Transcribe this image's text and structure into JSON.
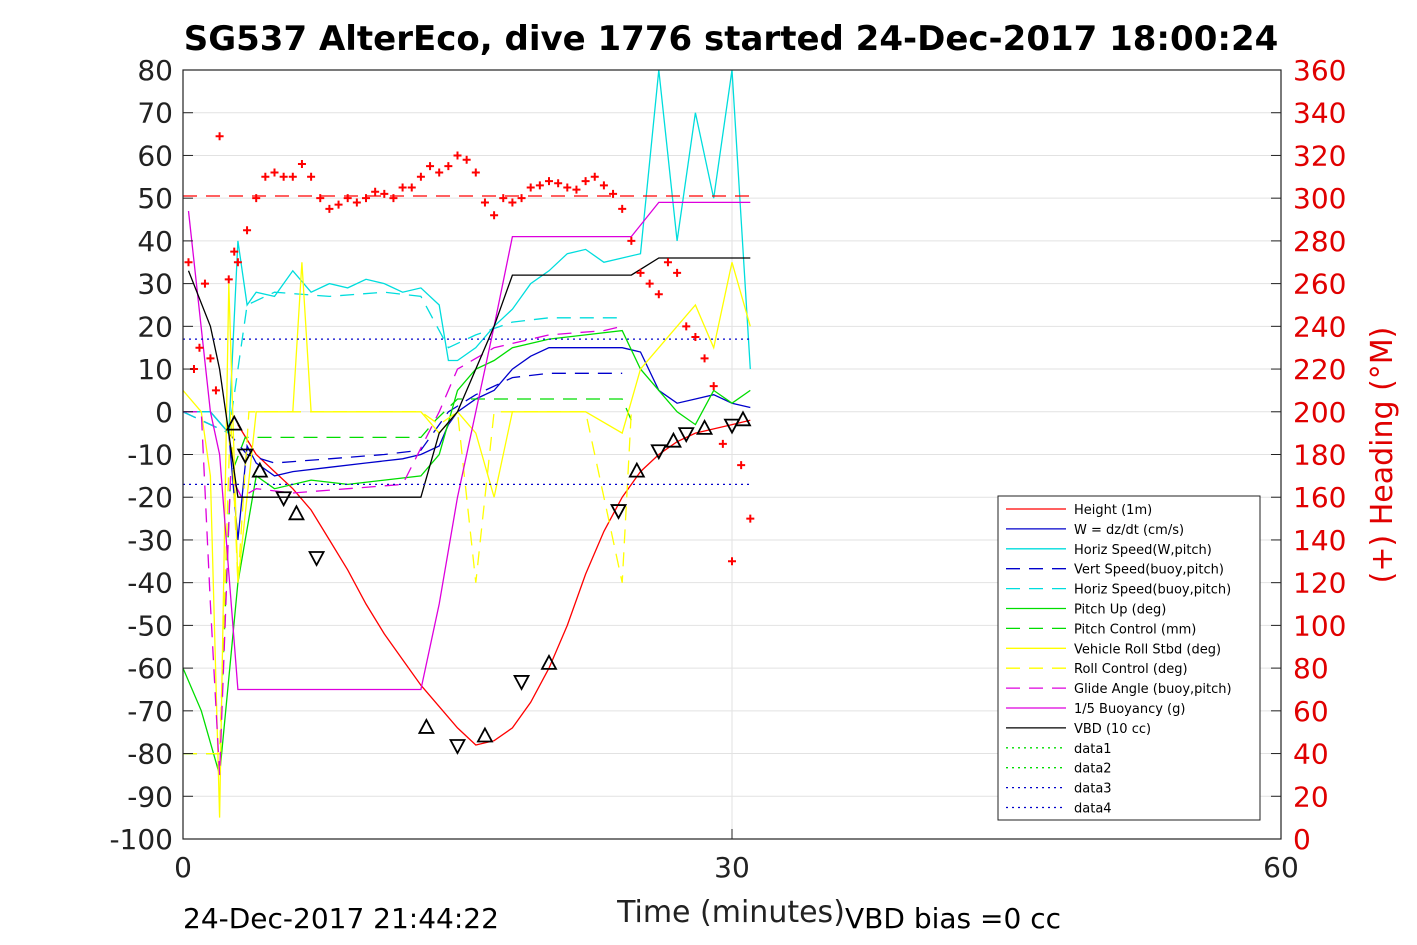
{
  "chart_data": {
    "type": "line",
    "title": "SG537 AlterEco, dive 1776 started 24-Dec-2017 18:00:24",
    "xlabel": "Time (minutes)",
    "ylabel": "",
    "y2label": "(+) Heading (°M)",
    "xlim": [
      0,
      60
    ],
    "ylim": [
      -100,
      80
    ],
    "y2lim": [
      0,
      360
    ],
    "x_ticks": [
      0,
      30,
      60
    ],
    "y_ticks": [
      80,
      70,
      60,
      50,
      40,
      30,
      20,
      10,
      0,
      -10,
      -20,
      -30,
      -40,
      -50,
      -60,
      -70,
      -80,
      -90,
      -100
    ],
    "y2_ticks": [
      360,
      340,
      320,
      300,
      280,
      260,
      240,
      220,
      200,
      180,
      160,
      140,
      120,
      100,
      80,
      60,
      40,
      20,
      0
    ],
    "grid": true,
    "legend_position": "bottom-right",
    "footer_left": "24-Dec-2017 21:44:22",
    "footer_right": "VBD bias =0 cc",
    "colors": {
      "height": "#ff0000",
      "w": "#0000cc",
      "horiz_w": "#00dddd",
      "vert_buoy": "#0000cc",
      "horiz_buoy": "#00dddd",
      "pitch_up": "#00dd00",
      "pitch_control": "#00dd00",
      "roll": "#ffff00",
      "roll_control": "#ffff00",
      "glide_angle": "#dd00dd",
      "buoyancy": "#dd00dd",
      "vbd": "#000000",
      "heading": "#ff0000"
    },
    "series": [
      {
        "name": "Height (1m)",
        "style": "solid",
        "color": "#ff0000",
        "x": [
          3.0,
          4.0,
          5.0,
          6.0,
          7.0,
          8.0,
          9.0,
          10.0,
          11.0,
          12.0,
          13.0,
          14.0,
          15.0,
          16.0,
          17.0,
          18.0,
          19.0,
          20.0,
          21.0,
          22.0,
          23.0,
          24.0,
          25.0,
          26.0,
          27.0,
          28.0,
          29.0,
          30.0,
          31.0
        ],
        "y": [
          -3,
          -10,
          -14,
          -18,
          -23,
          -30,
          -37,
          -45,
          -52,
          -58,
          -64,
          -69,
          -74,
          -78,
          -77,
          -74,
          -68,
          -60,
          -50,
          -38,
          -28,
          -20,
          -14,
          -10,
          -7,
          -5,
          -4,
          -3,
          -2
        ]
      },
      {
        "name": "W = dz/dt (cm/s)",
        "style": "solid",
        "color": "#0000cc",
        "x": [
          0,
          1.5,
          2.5,
          3.0,
          3.5,
          4.0,
          5.0,
          6.0,
          8.0,
          10.0,
          12.0,
          13.0,
          14.0,
          14.5,
          15.0,
          16.0,
          17.0,
          18.0,
          19.0,
          20.0,
          22.0,
          24.0,
          25.0,
          26.0,
          27.0,
          28.0,
          29.0,
          30.0,
          31.0
        ],
        "y": [
          0,
          0,
          -5,
          -30,
          -8,
          -12,
          -15,
          -14,
          -13,
          -12,
          -11,
          -10,
          -8,
          -3,
          0,
          3,
          5,
          10,
          13,
          15,
          15,
          15,
          14,
          5,
          2,
          3,
          4,
          2,
          1
        ]
      },
      {
        "name": "Horiz Speed(W,pitch)",
        "style": "solid",
        "color": "#00dddd",
        "x": [
          0,
          1.5,
          2.5,
          3.0,
          3.5,
          4.0,
          5.0,
          6.0,
          7.0,
          8.0,
          9.0,
          10.0,
          11.0,
          12.0,
          13.0,
          14.0,
          14.5,
          15.0,
          16.0,
          17.0,
          18.0,
          19.0,
          20.0,
          21.0,
          22.0,
          23.0,
          24.0,
          25.0,
          26.0,
          27.0,
          28.0,
          29.0,
          30.0,
          31.0
        ],
        "y": [
          0,
          0,
          -5,
          40,
          25,
          28,
          27,
          33,
          28,
          30,
          29,
          31,
          30,
          28,
          29,
          25,
          12,
          12,
          15,
          20,
          24,
          30,
          33,
          37,
          38,
          35,
          36,
          37,
          80,
          40,
          70,
          50,
          80,
          10
        ]
      },
      {
        "name": "Vert Speed(buoy,pitch)",
        "style": "dashed",
        "color": "#0000cc",
        "x": [
          0,
          2.5,
          3.5,
          5.0,
          8.0,
          11.0,
          13.0,
          14.5,
          16.0,
          18.0,
          20.0,
          22.0,
          24.0
        ],
        "y": [
          0,
          -5,
          -10,
          -12,
          -11,
          -10,
          -9,
          0,
          4,
          8,
          9,
          9,
          9
        ]
      },
      {
        "name": "Horiz Speed(buoy,pitch)",
        "style": "dashed",
        "color": "#00dddd",
        "x": [
          0,
          2.5,
          3.5,
          5.0,
          8.0,
          11.0,
          13.0,
          14.5,
          16.0,
          18.0,
          20.0,
          22.0,
          24.0
        ],
        "y": [
          0,
          -5,
          25,
          28,
          27,
          28,
          27,
          15,
          18,
          21,
          22,
          22,
          22
        ]
      },
      {
        "name": "Pitch Up (deg)",
        "style": "solid",
        "color": "#00dd00",
        "x": [
          0,
          1.0,
          2.0,
          3.0,
          4.0,
          5.0,
          7.0,
          9.0,
          11.0,
          13.0,
          14.0,
          15.0,
          16.0,
          17.0,
          18.0,
          20.0,
          22.0,
          24.0,
          25.0,
          26.0,
          27.0,
          28.0,
          29.0,
          30.0,
          31.0
        ],
        "y": [
          -60,
          -70,
          -85,
          -40,
          -15,
          -18,
          -16,
          -17,
          -16,
          -15,
          -10,
          5,
          10,
          12,
          15,
          17,
          18,
          19,
          10,
          5,
          0,
          -3,
          5,
          2,
          5
        ]
      },
      {
        "name": "Pitch Control (mm)",
        "style": "dashed",
        "color": "#00dd00",
        "x": [
          0,
          2.0,
          2.6,
          3.4,
          4.5,
          8.0,
          13.0,
          13.8,
          15.0,
          18.0,
          24.0,
          24.5
        ],
        "y": [
          -80,
          -80,
          -15,
          -6,
          -6,
          -6,
          -6,
          -2,
          3,
          3,
          3,
          -2
        ]
      },
      {
        "name": "Vehicle Roll Stbd (deg)",
        "style": "solid",
        "color": "#ffff00",
        "x": [
          0,
          1.0,
          1.5,
          2.0,
          2.5,
          3.0,
          4.0,
          5.0,
          6.0,
          6.5,
          7.0,
          8.0,
          10.0,
          12.0,
          13.0,
          14.0,
          15.0,
          16.0,
          17.0,
          18.0,
          20.0,
          22.0,
          24.0,
          25.0,
          26.0,
          27.0,
          28.0,
          29.0,
          30.0,
          31.0
        ],
        "y": [
          5,
          0,
          -15,
          -95,
          30,
          -40,
          0,
          0,
          0,
          35,
          0,
          0,
          0,
          0,
          0,
          -5,
          0,
          -5,
          -20,
          0,
          0,
          0,
          -5,
          10,
          15,
          20,
          25,
          15,
          35,
          20
        ]
      },
      {
        "name": "Roll Control (deg)",
        "style": "dashed",
        "color": "#ffff00",
        "x": [
          0,
          2.0,
          2.6,
          3.0,
          3.6,
          4.5,
          13.0,
          14.0,
          15.0,
          16.0,
          17.0,
          18.0,
          22.0,
          24.0,
          24.5
        ],
        "y": [
          -80,
          -80,
          0,
          -40,
          0,
          0,
          0,
          -3,
          0,
          -40,
          0,
          0,
          0,
          -40,
          0
        ]
      },
      {
        "name": "Glide Angle (buoy,pitch)",
        "style": "dashed",
        "color": "#dd00dd",
        "x": [
          0,
          1.0,
          1.5,
          2.0,
          2.6,
          3.2,
          4.0,
          6.0,
          9.0,
          12.0,
          14.0,
          15.0,
          17.0,
          20.0,
          23.0,
          24.0
        ],
        "y": [
          0,
          0,
          -45,
          -85,
          -15,
          -20,
          -18,
          -19,
          -18,
          -17,
          0,
          10,
          15,
          18,
          19,
          20
        ]
      },
      {
        "name": "1/5 Buoyancy (g)",
        "style": "solid",
        "color": "#dd00dd",
        "x": [
          0.3,
          1.5,
          2.0,
          3.0,
          3.5,
          5.0,
          8.0,
          11.0,
          13.0,
          14.0,
          15.0,
          17.0,
          18.0,
          20.0,
          23.0,
          24.5,
          26.0,
          27.0,
          30.0,
          31.0
        ],
        "y": [
          47,
          0,
          -10,
          -65,
          -65,
          -65,
          -65,
          -65,
          -65,
          -45,
          -20,
          20,
          41,
          41,
          41,
          41,
          49,
          49,
          49,
          49
        ]
      },
      {
        "name": "VBD (10 cc)",
        "style": "solid",
        "color": "#000000",
        "x": [
          0.3,
          1.5,
          2.0,
          3.0,
          3.5,
          5.0,
          8.0,
          11.0,
          13.0,
          14.0,
          15.0,
          17.0,
          18.0,
          20.0,
          23.0,
          24.5,
          26.0,
          27.0,
          30.0,
          31.0
        ],
        "y": [
          33,
          20,
          10,
          -20,
          -20,
          -20,
          -20,
          -20,
          -20,
          -5,
          0,
          20,
          32,
          32,
          32,
          32,
          36,
          36,
          36,
          36
        ]
      },
      {
        "name": "data1",
        "style": "dotted",
        "color": "#00dd00",
        "x": [],
        "y": []
      },
      {
        "name": "data2",
        "style": "dotted",
        "color": "#00dd00",
        "x": [],
        "y": []
      },
      {
        "name": "data3",
        "style": "dotted",
        "color": "#0000cc",
        "x": [
          0,
          31
        ],
        "y": [
          17,
          17
        ]
      },
      {
        "name": "data4",
        "style": "dotted",
        "color": "#0000cc",
        "x": [
          0,
          31
        ],
        "y": [
          -17,
          -17
        ]
      }
    ],
    "heading_reference": 301,
    "heading_points": {
      "x": [
        0.3,
        0.6,
        0.9,
        1.2,
        1.5,
        1.8,
        2.0,
        2.5,
        2.8,
        3.0,
        3.5,
        4.0,
        4.5,
        5.0,
        5.5,
        6.0,
        6.5,
        7.0,
        7.5,
        8.0,
        8.5,
        9.0,
        9.5,
        10.0,
        10.5,
        11.0,
        11.5,
        12.0,
        12.5,
        13.0,
        13.5,
        14.0,
        14.5,
        15.0,
        15.5,
        16.0,
        16.5,
        17.0,
        17.5,
        18.0,
        18.5,
        19.0,
        19.5,
        20.0,
        20.5,
        21.0,
        21.5,
        22.0,
        22.5,
        23.0,
        23.5,
        24.0,
        24.5,
        25.0,
        25.5,
        26.0,
        26.5,
        27.0,
        27.5,
        28.0,
        28.5,
        29.0,
        29.5,
        30.0,
        30.5,
        31.0
      ],
      "y": [
        270,
        220,
        230,
        260,
        225,
        210,
        329,
        262,
        275,
        270,
        285,
        300,
        310,
        312,
        310,
        310,
        316,
        310,
        300,
        295,
        297,
        300,
        298,
        300,
        303,
        302,
        300,
        305,
        305,
        310,
        315,
        312,
        315,
        320,
        318,
        312,
        298,
        292,
        300,
        298,
        300,
        305,
        306,
        308,
        307,
        305,
        304,
        308,
        310,
        306,
        302,
        295,
        280,
        265,
        260,
        255,
        270,
        265,
        240,
        235,
        225,
        212,
        185,
        130,
        175,
        150
      ]
    },
    "markers": {
      "x": [
        2.8,
        3.4,
        4.2,
        5.5,
        6.2,
        7.3,
        13.3,
        15.0,
        16.5,
        18.5,
        20.0,
        23.8,
        24.8,
        26.0,
        26.8,
        27.5,
        28.5,
        30.0,
        30.6
      ],
      "y": [
        -3,
        -10,
        -14,
        -20,
        -24,
        -34,
        -74,
        -78,
        -76,
        -63,
        -59,
        -23,
        -14,
        -9,
        -7,
        -5,
        -4,
        -3,
        -2
      ]
    }
  }
}
